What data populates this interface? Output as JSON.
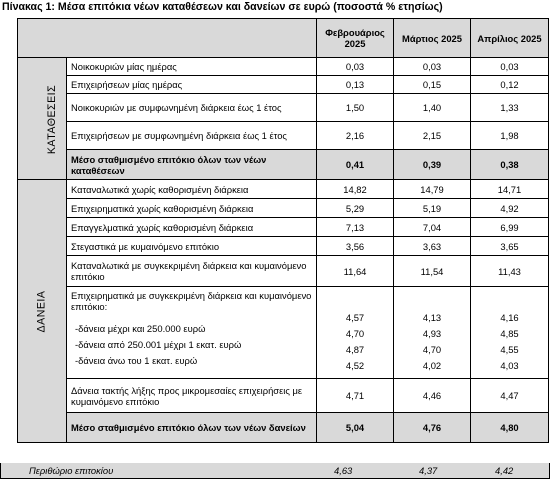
{
  "title": "Πίνακας 1: Μέσα επιτόκια νέων καταθέσεων και δανείων σε ευρώ (ποσοστά % ετησίως)",
  "columns": [
    "Φεβρουάριος 2025",
    "Μάρτιος 2025",
    "Απρίλιος 2025"
  ],
  "deposits": {
    "section_label": "ΚΑΤΑΘΕΣΕΙΣ",
    "rows": [
      {
        "label": "Νοικοκυριών μίας ημέρας",
        "values": [
          "0,03",
          "0,03",
          "0,03"
        ]
      },
      {
        "label": "Επιχειρήσεων μίας ημέρας",
        "values": [
          "0,13",
          "0,15",
          "0,12"
        ]
      },
      {
        "label": "Νοικοκυριών με συμφωνημένη διάρκεια έως 1 έτος",
        "values": [
          "1,50",
          "1,40",
          "1,33"
        ]
      },
      {
        "label": "Επιχειρήσεων με συμφωνημένη διάρκεια έως 1 έτος",
        "values": [
          "2,16",
          "2,15",
          "1,98"
        ]
      }
    ],
    "average": {
      "label": "Μέσο σταθμισμένο επιτόκιο όλων των νέων καταθέσεων",
      "values": [
        "0,41",
        "0,39",
        "0,38"
      ]
    }
  },
  "loans": {
    "section_label": "ΔΑΝΕΙΑ",
    "rows": [
      {
        "label": "Καταναλωτικά χωρίς καθορισμένη διάρκεια",
        "values": [
          "14,82",
          "14,79",
          "14,71"
        ]
      },
      {
        "label": "Επιχειρηματικά χωρίς καθορισμένη διάρκεια",
        "values": [
          "5,29",
          "5,19",
          "4,92"
        ]
      },
      {
        "label": "Επαγγελματικά χωρίς καθορισμένη διάρκεια",
        "values": [
          "7,13",
          "7,04",
          "6,99"
        ]
      },
      {
        "label": "Στεγαστικά με κυμαινόμενο επιτόκιο",
        "values": [
          "3,56",
          "3,63",
          "3,65"
        ]
      },
      {
        "label": "Καταναλωτικά με συγκεκριμένη διάρκεια και κυμαινόμενο επιτόκιο",
        "values": [
          "11,64",
          "11,54",
          "11,43"
        ]
      }
    ],
    "business_group": {
      "label": "Επιχειρηματικά με συγκεκριμένη διάρκεια και κυμαινόμενο επιτόκιο:",
      "total": [
        "4,57",
        "4,13",
        "4,16"
      ],
      "sub_rows": [
        {
          "label": "-δάνεια μέχρι και 250.000 ευρώ",
          "values": [
            "4,70",
            "4,93",
            "4,85"
          ]
        },
        {
          "label": "-δάνεια από 250.001 μέχρι 1 εκατ. ευρώ",
          "values": [
            "4,87",
            "4,70",
            "4,55"
          ]
        },
        {
          "label": "-δάνεια άνω του 1 εκατ. ευρώ",
          "values": [
            "4,52",
            "4,02",
            "4,03"
          ]
        }
      ]
    },
    "sme_row": {
      "label": "Δάνεια τακτής λήξης προς μικρομεσαίες επιχειρήσεις με κυμαινόμενο επιτόκιο",
      "values": [
        "4,71",
        "4,46",
        "4,47"
      ]
    },
    "average": {
      "label": "Μέσο σταθμισμένο επιτόκιο όλων των νέων δανείων",
      "values": [
        "5,04",
        "4,76",
        "4,80"
      ]
    }
  },
  "margin_row": {
    "label": "Περιθώριο επιτοκίου",
    "values": [
      "4,63",
      "4,37",
      "4,42"
    ]
  }
}
